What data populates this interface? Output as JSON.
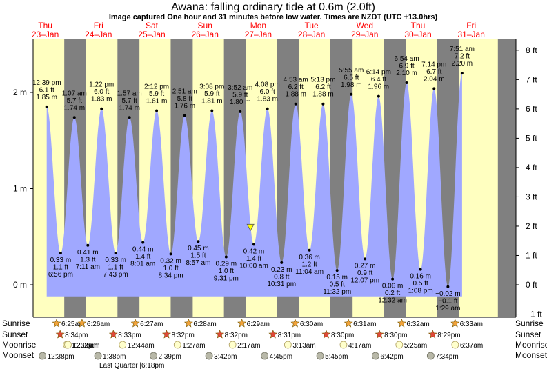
{
  "title": "Awana: falling  ordinary tide at 0.6m (2.0ft)",
  "subtitle": "Image captured One hour and 31 minutes before low water. Times are NZDT (UTC +13.0hrs)",
  "chart_data": {
    "type": "area",
    "days": [
      {
        "name": "Thu",
        "date": "23–Jan"
      },
      {
        "name": "Fri",
        "date": "24–Jan"
      },
      {
        "name": "Sat",
        "date": "25–Jan"
      },
      {
        "name": "Sun",
        "date": "26–Jan"
      },
      {
        "name": "Mon",
        "date": "27–Jan"
      },
      {
        "name": "Tue",
        "date": "28–Jan"
      },
      {
        "name": "Wed",
        "date": "29–Jan"
      },
      {
        "name": "Thu",
        "date": "30–Jan"
      },
      {
        "name": "Fri",
        "date": "31–Jan"
      }
    ],
    "y_left_ticks": [
      "2 m",
      "1 m",
      "0 m"
    ],
    "y_right_ticks": [
      "8 ft",
      "7 ft",
      "6 ft",
      "5 ft",
      "4 ft",
      "3 ft",
      "2 ft",
      "1 ft",
      "0 ft",
      "−1 ft"
    ],
    "tides": [
      {
        "type": "high",
        "time": "12:39 pm",
        "ft": "6.1 ft",
        "m": "1.85 m",
        "hours": 12.65,
        "value": 1.85
      },
      {
        "type": "low",
        "time": "6:56 pm",
        "ft": "1.1 ft",
        "m": "0.33 m",
        "hours": 18.93,
        "value": 0.33
      },
      {
        "type": "high",
        "time": "1:07 am",
        "ft": "5.7 ft",
        "m": "1.74 m",
        "hours": 25.12,
        "value": 1.74
      },
      {
        "type": "low",
        "time": "7:11 am",
        "ft": "1.3 ft",
        "m": "0.41 m",
        "hours": 31.18,
        "value": 0.41
      },
      {
        "type": "high",
        "time": "1:22 pm",
        "ft": "6.0 ft",
        "m": "1.83 m",
        "hours": 37.37,
        "value": 1.83
      },
      {
        "type": "low",
        "time": "7:43 pm",
        "ft": "1.1 ft",
        "m": "0.33 m",
        "hours": 43.72,
        "value": 0.33
      },
      {
        "type": "high",
        "time": "1:57 am",
        "ft": "5.7 ft",
        "m": "1.74 m",
        "hours": 49.95,
        "value": 1.74
      },
      {
        "type": "low",
        "time": "8:01 am",
        "ft": "1.4 ft",
        "m": "0.44 m",
        "hours": 56.02,
        "value": 0.44
      },
      {
        "type": "high",
        "time": "2:12 pm",
        "ft": "5.9 ft",
        "m": "1.81 m",
        "hours": 62.2,
        "value": 1.81
      },
      {
        "type": "low",
        "time": "8:34 pm",
        "ft": "1.0 ft",
        "m": "0.32 m",
        "hours": 68.57,
        "value": 0.32
      },
      {
        "type": "high",
        "time": "2:51 am",
        "ft": "5.8 ft",
        "m": "1.76 m",
        "hours": 74.85,
        "value": 1.76
      },
      {
        "type": "low",
        "time": "8:57 am",
        "ft": "1.5 ft",
        "m": "0.45 m",
        "hours": 80.95,
        "value": 0.45
      },
      {
        "type": "high",
        "time": "3:08 pm",
        "ft": "5.9 ft",
        "m": "1.81 m",
        "hours": 87.13,
        "value": 1.81
      },
      {
        "type": "low",
        "time": "9:31 pm",
        "ft": "1.0 ft",
        "m": "0.29 m",
        "hours": 93.52,
        "value": 0.29
      },
      {
        "type": "high",
        "time": "3:52 am",
        "ft": "5.9 ft",
        "m": "1.80 m",
        "hours": 99.87,
        "value": 1.8
      },
      {
        "type": "low",
        "time": "10:00 am",
        "ft": "1.4 ft",
        "m": "0.42 m",
        "hours": 106.0,
        "value": 0.42
      },
      {
        "type": "high",
        "time": "4:08 pm",
        "ft": "6.0 ft",
        "m": "1.83 m",
        "hours": 112.13,
        "value": 1.83
      },
      {
        "type": "low",
        "time": "10:31 pm",
        "ft": "0.8 ft",
        "m": "0.23 m",
        "hours": 118.52,
        "value": 0.23
      },
      {
        "type": "high",
        "time": "4:53 am",
        "ft": "6.2 ft",
        "m": "1.88 m",
        "hours": 124.88,
        "value": 1.88
      },
      {
        "type": "low",
        "time": "11:04 am",
        "ft": "1.2 ft",
        "m": "0.36 m",
        "hours": 131.07,
        "value": 0.36
      },
      {
        "type": "high",
        "time": "5:13 pm",
        "ft": "6.2 ft",
        "m": "1.88 m",
        "hours": 137.22,
        "value": 1.88
      },
      {
        "type": "low",
        "time": "11:32 pm",
        "ft": "0.5 ft",
        "m": "0.15 m",
        "hours": 143.53,
        "value": 0.15
      },
      {
        "type": "high",
        "time": "5:55 am",
        "ft": "6.5 ft",
        "m": "1.98 m",
        "hours": 149.92,
        "value": 1.98
      },
      {
        "type": "low",
        "time": "12:07 pm",
        "ft": "0.9 ft",
        "m": "0.27 m",
        "hours": 156.12,
        "value": 0.27
      },
      {
        "type": "high",
        "time": "6:14 pm",
        "ft": "6.4 ft",
        "m": "1.96 m",
        "hours": 162.23,
        "value": 1.96
      },
      {
        "type": "low",
        "time": "12:32 am",
        "ft": "0.2 ft",
        "m": "0.06 m",
        "hours": 168.53,
        "value": 0.06
      },
      {
        "type": "high",
        "time": "6:54 am",
        "ft": "6.9 ft",
        "m": "2.10 m",
        "hours": 174.9,
        "value": 2.1
      },
      {
        "type": "low",
        "time": "1:08 pm",
        "ft": "0.5 ft",
        "m": "0.16 m",
        "hours": 181.13,
        "value": 0.16
      },
      {
        "type": "high",
        "time": "7:14 pm",
        "ft": "6.7 ft",
        "m": "2.04 m",
        "hours": 187.23,
        "value": 2.04
      },
      {
        "type": "low",
        "time": "1:29 am",
        "ft": "−0.1 ft",
        "m": "−0.02 m",
        "hours": 193.48,
        "value": -0.02
      },
      {
        "type": "high",
        "time": "7:51 am",
        "ft": "7.2 ft",
        "m": "2.20 m",
        "hours": 199.85,
        "value": 2.2
      }
    ],
    "current_marker_hours": 104.5,
    "current_marker_value": 0.6,
    "sunrise": [
      "6:25am",
      "6:26am",
      "6:27am",
      "6:28am",
      "6:29am",
      "6:30am",
      "6:31am",
      "6:32am",
      "6:33am"
    ],
    "sunset": [
      "8:34pm",
      "8:33pm",
      "8:32pm",
      "8:32pm",
      "8:31pm",
      "8:30pm",
      "8:30pm",
      "8:29pm"
    ],
    "moonrise": [
      "11:32pm",
      "12:06am",
      "12:44am",
      "1:27am",
      "2:17am",
      "3:13am",
      "4:17am",
      "5:25am",
      "6:37am"
    ],
    "moonset": [
      "12:38pm",
      "1:38pm",
      "2:39pm",
      "3:42pm",
      "4:45pm",
      "5:45pm",
      "6:42pm",
      "7:34pm"
    ],
    "moon_phase_note": "Last Quarter |6:18pm",
    "row_labels": {
      "sunrise": "Sunrise",
      "sunset": "Sunset",
      "moonrise": "Moonrise",
      "moonset": "Moonset"
    },
    "colors": {
      "day": "#ffffc0",
      "night": "#808080",
      "tide": "#a0a8ff",
      "day_label": "#ff0000",
      "marker": "#ffff00"
    }
  }
}
